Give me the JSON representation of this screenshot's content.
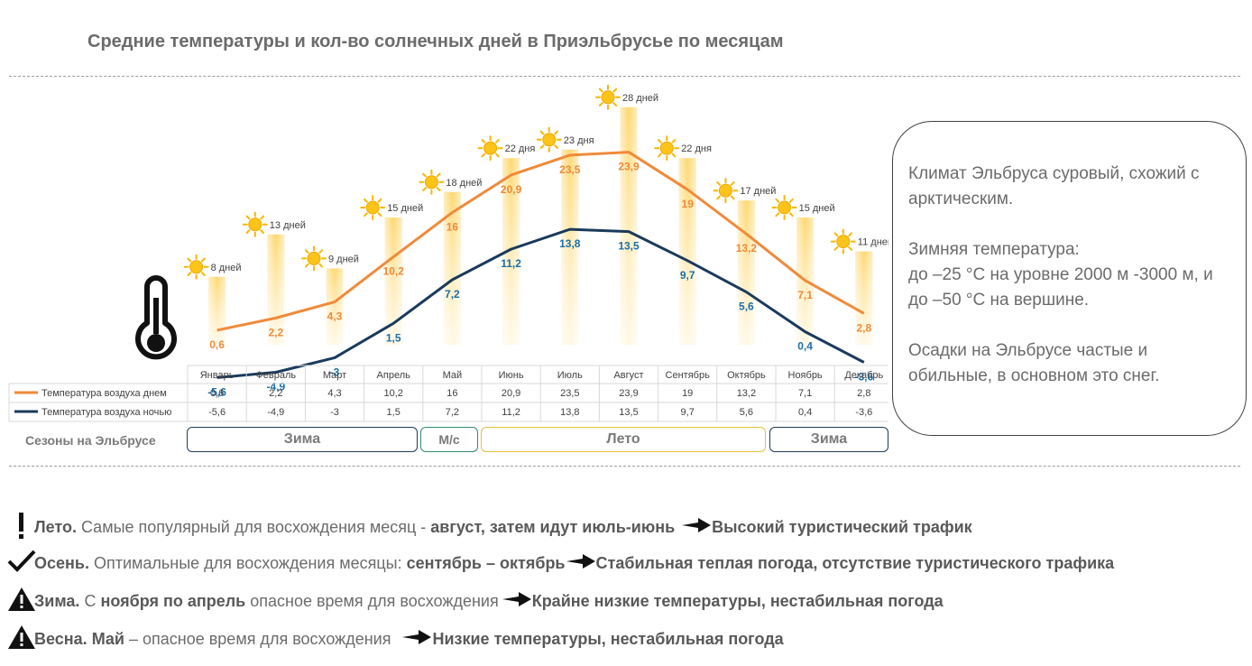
{
  "title": "Средние температуры и кол-во солнечных дней в Приэльбрусье по месяцам",
  "chart_data": {
    "type": "line",
    "categories": [
      "Январь",
      "Февраль",
      "Март",
      "Апрель",
      "Май",
      "Июнь",
      "Июль",
      "Август",
      "Сентябрь",
      "Октябрь",
      "Ноябрь",
      "Декабрь"
    ],
    "series": [
      {
        "name": "Температура воздуха днем",
        "values": [
          0.6,
          2.2,
          4.3,
          10.2,
          16,
          20.9,
          23.5,
          23.9,
          19,
          13.2,
          7.1,
          2.8
        ],
        "labels": [
          "0,6",
          "2,2",
          "4,3",
          "10,2",
          "16",
          "20,9",
          "23,5",
          "23,9",
          "19",
          "13,2",
          "7,1",
          "2,8"
        ],
        "color": "#f08a3a"
      },
      {
        "name": "Температура воздуха ночью",
        "values": [
          -5.6,
          -4.9,
          -3,
          1.5,
          7.2,
          11.2,
          13.8,
          13.5,
          9.7,
          5.6,
          0.4,
          -3.6
        ],
        "labels": [
          "-5,6",
          "-4,9",
          "-3",
          "1,5",
          "7,2",
          "11,2",
          "13,8",
          "13,5",
          "9,7",
          "5,6",
          "0,4",
          "-3,6"
        ],
        "color": "#1a3a5c"
      }
    ],
    "sunny_days": [
      8,
      13,
      9,
      15,
      18,
      22,
      23,
      28,
      22,
      17,
      15,
      11
    ],
    "sunny_day_labels": [
      "8 дней",
      "13 дней",
      "9 дней",
      "15 дней",
      "18 дней",
      "22 дня",
      "23 дня",
      "28 дней",
      "22 дня",
      "17 дней",
      "15 дней",
      "11 дней"
    ],
    "bar_color": "#fdd66a",
    "legend_placement": "bottom table",
    "grid": false
  },
  "seasons": {
    "label": "Сезоны на Эльбрусе",
    "items": [
      {
        "name": "Зима",
        "color": "#1f3a5a"
      },
      {
        "name": "М/с",
        "color": "#2e8b6e"
      },
      {
        "name": "Лето",
        "color": "#e8c040"
      },
      {
        "name": "Зима",
        "color": "#1f3a5a"
      }
    ]
  },
  "climate": {
    "p1": "Климат Эльбруса суровый, схожий с арктическим.",
    "p2a": "Зимняя температура:",
    "p2b": "до –25 °C на уровне 2000 м -3000 м, и до –50 °C на вершине.",
    "p3": "Осадки на Эльбрусе частые и обильные, в основном это снег."
  },
  "notes": [
    {
      "icon": "exclamation-icon",
      "label": "Лето.",
      "text": " Самые популярный для восхождения месяц - ",
      "bold": "август, затем идут июль-июнь",
      "result": "Высокий туристический трафик"
    },
    {
      "icon": "checkmark-icon",
      "label": "Осень.",
      "text": " Оптимальные для восхождения месяцы: ",
      "bold": "сентябрь – октябрь",
      "result": "Стабильная теплая погода, отсутствие туристического трафика"
    },
    {
      "icon": "warning-icon",
      "label": "Зима.",
      "text": " С ",
      "bold": "ноября по апрель",
      "text2": " опасное время для восхождения",
      "result": "Крайне низкие температуры, нестабильная погода"
    },
    {
      "icon": "warning-icon",
      "label": "Весна.",
      "text": " ",
      "bold": "Май",
      "text2": " – опасное время для восхождения ",
      "result": "Низкие температуры, нестабильная погода"
    }
  ]
}
